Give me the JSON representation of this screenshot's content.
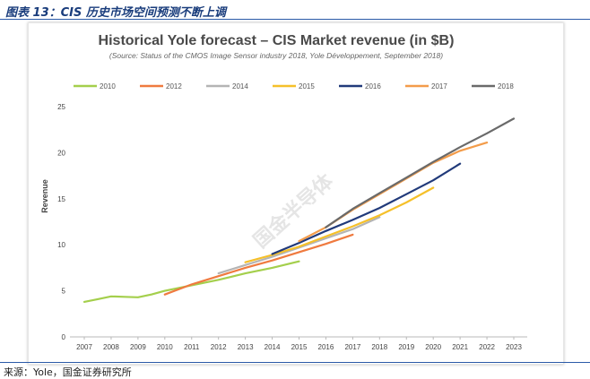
{
  "figure": {
    "caption": "图表 13：CIS 历史市场空间预测不断上调",
    "source": "来源：Yole，国金证券研究所",
    "watermark": "国金半导体"
  },
  "colors": {
    "caption": "#1a3d7c",
    "rule": "#2b5aa8",
    "axis": "#b8b8b8",
    "tick": "#444444",
    "title": "#4a4a4a"
  },
  "chart_data": {
    "type": "line",
    "title": "Historical Yole forecast – CIS Market revenue (in $B)",
    "subtitle": "(Source: Status of the CMOS Image Sensor industry 2018, Yole Développement, September 2018)",
    "ylabel": "Revenue",
    "xlabel": "",
    "ylim": [
      0,
      25
    ],
    "yticks": [
      "0",
      "5",
      "10",
      "15",
      "20",
      "25"
    ],
    "categories": [
      "2007",
      "2008",
      "2009",
      "2010",
      "2011",
      "2012",
      "2013",
      "2014",
      "2015",
      "2016",
      "2017",
      "2018",
      "2019",
      "2020",
      "2021",
      "2022",
      "2023"
    ],
    "grid": false,
    "legend_position": "top",
    "series": [
      {
        "name": "2010",
        "color": "#a4cf4c",
        "x": [
          2007,
          2007.5,
          2008,
          2008.5,
          2009,
          2009.5,
          2010,
          2011,
          2012,
          2013,
          2014,
          2015
        ],
        "values": [
          3.8,
          4.1,
          4.4,
          4.35,
          4.3,
          4.6,
          5.0,
          5.6,
          6.2,
          6.9,
          7.5,
          8.2
        ]
      },
      {
        "name": "2012",
        "color": "#ef7a3f",
        "x": [
          2010,
          2011,
          2012,
          2013,
          2014,
          2015,
          2016,
          2017
        ],
        "values": [
          4.6,
          5.7,
          6.6,
          7.5,
          8.3,
          9.2,
          10.1,
          11.1
        ]
      },
      {
        "name": "2014",
        "color": "#b4b4b4",
        "x": [
          2012,
          2013,
          2014,
          2015,
          2016,
          2017,
          2018
        ],
        "values": [
          6.9,
          7.8,
          8.7,
          9.7,
          10.7,
          11.7,
          13.0
        ]
      },
      {
        "name": "2015",
        "color": "#f5c02a",
        "x": [
          2013,
          2014,
          2015,
          2016,
          2017,
          2018,
          2019,
          2020
        ],
        "values": [
          8.1,
          8.9,
          9.8,
          10.9,
          12.0,
          13.2,
          14.6,
          16.2
        ]
      },
      {
        "name": "2016",
        "color": "#213a7a",
        "x": [
          2014,
          2015,
          2016,
          2017,
          2018,
          2019,
          2020,
          2021
        ],
        "values": [
          9.0,
          10.2,
          11.5,
          12.7,
          14.0,
          15.5,
          17.0,
          18.8
        ]
      },
      {
        "name": "2017",
        "color": "#f39c4a",
        "x": [
          2015,
          2016,
          2017,
          2018,
          2019,
          2020,
          2021,
          2022
        ],
        "values": [
          10.4,
          11.9,
          13.8,
          15.5,
          17.2,
          18.9,
          20.2,
          21.1
        ]
      },
      {
        "name": "2018",
        "color": "#6a6a6a",
        "x": [
          2016,
          2017,
          2018,
          2019,
          2020,
          2021,
          2022,
          2023
        ],
        "values": [
          11.9,
          13.9,
          15.6,
          17.3,
          19.0,
          20.6,
          22.1,
          23.7
        ]
      }
    ]
  }
}
